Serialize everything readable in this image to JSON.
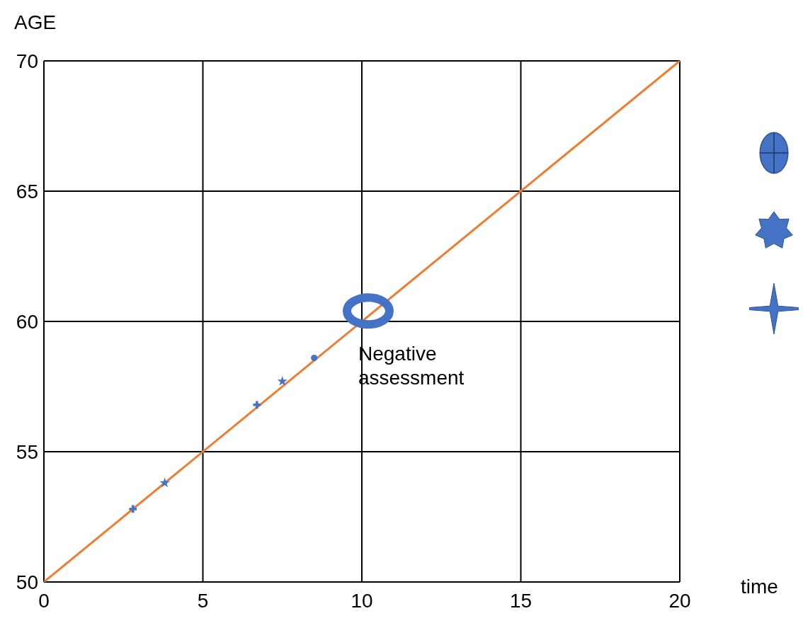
{
  "chart_data": {
    "type": "scatter",
    "xlabel": "time",
    "ylabel": "AGE",
    "xlim": [
      0,
      20
    ],
    "ylim": [
      50,
      70
    ],
    "xticks": [
      0,
      5,
      10,
      15,
      20
    ],
    "yticks": [
      50,
      55,
      60,
      65,
      70
    ],
    "grid": true,
    "legend": false,
    "series": [
      {
        "type": "line",
        "color": "#ed7d31",
        "x": [
          0,
          20
        ],
        "values": [
          50,
          70
        ],
        "marker": "none"
      },
      {
        "color": "#4472c4",
        "x": [
          2.8,
          6.7
        ],
        "values": [
          52.8,
          56.8
        ],
        "marker": "cross"
      },
      {
        "color": "#4472c4",
        "x": [
          3.8,
          7.5
        ],
        "values": [
          53.8,
          57.7
        ],
        "marker": "star"
      },
      {
        "color": "#4472c4",
        "x": [
          8.5
        ],
        "values": [
          58.6
        ],
        "marker": "circle"
      }
    ],
    "annotations": [
      {
        "text": "Negative assessment",
        "x": 10.2,
        "y": 60.4
      }
    ]
  }
}
